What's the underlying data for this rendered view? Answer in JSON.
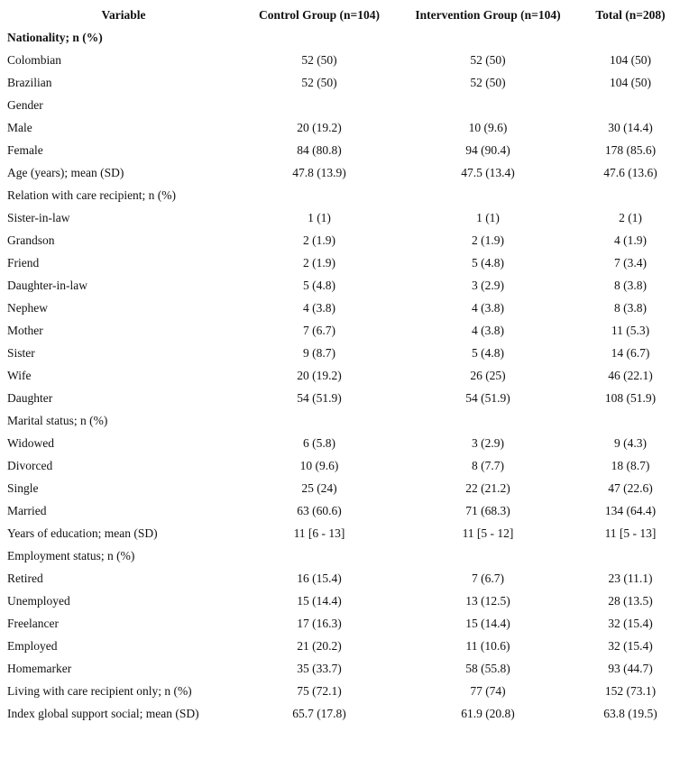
{
  "table": {
    "header": [
      "Variable",
      "Control Group (n=104)",
      "Intervention Group (n=104)",
      "Total (n=208)"
    ],
    "rows": [
      [
        "Nationality; n (%)"
      ],
      [
        "Colombian",
        "52 (50)",
        "52 (50)",
        "104 (50)"
      ],
      [
        "Brazilian",
        "52 (50)",
        "52 (50)",
        "104 (50)"
      ],
      [
        "Gender"
      ],
      [
        "Male",
        "20 (19.2)",
        "10 (9.6)",
        "30 (14.4)"
      ],
      [
        "Female",
        "84 (80.8)",
        "94 (90.4)",
        "178 (85.6)"
      ],
      [
        "Age (years); mean (SD)",
        "47.8 (13.9)",
        "47.5 (13.4)",
        "47.6 (13.6)"
      ],
      [
        "Relation with care recipient; n (%)"
      ],
      [
        "Sister-in-law",
        "1 (1)",
        "1 (1)",
        "2 (1)"
      ],
      [
        "Grandson",
        "2 (1.9)",
        "2 (1.9)",
        "4 (1.9)"
      ],
      [
        "Friend",
        "2 (1.9)",
        "5 (4.8)",
        "7 (3.4)"
      ],
      [
        "Daughter-in-law",
        "5 (4.8)",
        "3 (2.9)",
        "8 (3.8)"
      ],
      [
        "Nephew",
        "4 (3.8)",
        "4 (3.8)",
        "8 (3.8)"
      ],
      [
        "Mother",
        "7 (6.7)",
        "4 (3.8)",
        "11 (5.3)"
      ],
      [
        "Sister",
        "9 (8.7)",
        "5 (4.8)",
        "14 (6.7)"
      ],
      [
        "Wife",
        "20 (19.2)",
        "26 (25)",
        "46 (22.1)"
      ],
      [
        "Daughter",
        "54 (51.9)",
        "54 (51.9)",
        "108 (51.9)"
      ],
      [
        "Marital status; n (%)"
      ],
      [
        "Widowed",
        "6 (5.8)",
        "3 (2.9)",
        "9 (4.3)"
      ],
      [
        "Divorced",
        "10 (9.6)",
        "8 (7.7)",
        "18 (8.7)"
      ],
      [
        "Single",
        "25 (24)",
        "22 (21.2)",
        "47 (22.6)"
      ],
      [
        "Married",
        "63 (60.6)",
        "71 (68.3)",
        "134 (64.4)"
      ],
      [
        "Years of education; mean (SD)",
        "11 [6 - 13]",
        "11 [5 - 12]",
        "11 [5 - 13]"
      ],
      [
        "Employment status; n (%)"
      ],
      [
        "Retired",
        "16 (15.4)",
        "7 (6.7)",
        "23 (11.1)"
      ],
      [
        "Unemployed",
        "15 (14.4)",
        "13 (12.5)",
        "28 (13.5)"
      ],
      [
        "Freelancer",
        "17 (16.3)",
        "15 (14.4)",
        "32 (15.4)"
      ],
      [
        "Employed",
        "21 (20.2)",
        "11 (10.6)",
        "32 (15.4)"
      ],
      [
        "Homemarker",
        "35 (33.7)",
        "58 (55.8)",
        "93 (44.7)"
      ],
      [
        "Living with care recipient only; n (%)",
        "75 (72.1)",
        "77 (74)",
        "152 (73.1)"
      ],
      [
        "Index global support social; mean (SD)",
        "65.7 (17.8)",
        "61.9 (20.8)",
        "63.8 (19.5)"
      ]
    ]
  }
}
